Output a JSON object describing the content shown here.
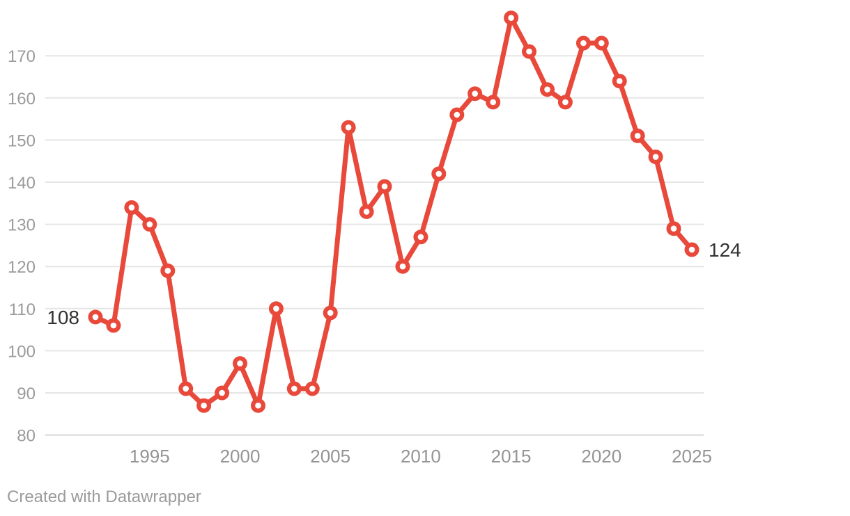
{
  "chart_data": {
    "type": "line",
    "x": [
      1992,
      1993,
      1994,
      1995,
      1996,
      1997,
      1998,
      1999,
      2000,
      2001,
      2002,
      2003,
      2004,
      2005,
      2006,
      2007,
      2008,
      2009,
      2010,
      2011,
      2012,
      2013,
      2014,
      2015,
      2016,
      2017,
      2018,
      2019,
      2020,
      2021,
      2022,
      2023,
      2024,
      2025
    ],
    "values": [
      108,
      106,
      134,
      130,
      119,
      91,
      87,
      90,
      97,
      87,
      110,
      91,
      91,
      109,
      153,
      133,
      139,
      120,
      127,
      142,
      156,
      161,
      159,
      179,
      171,
      162,
      159,
      173,
      173,
      164,
      151,
      146,
      129,
      124
    ],
    "title": "",
    "xlabel": "",
    "ylabel": "",
    "ylim": [
      80,
      180
    ],
    "yticks": [
      80,
      90,
      100,
      110,
      120,
      130,
      140,
      150,
      160,
      170
    ],
    "xticks": [
      1995,
      2000,
      2005,
      2010,
      2015,
      2020,
      2025
    ],
    "first_point_label": "108",
    "last_point_label": "124",
    "grid": "horizontal",
    "legend": "none",
    "marker": "open-circle",
    "series_color": "#e8493b",
    "marker_hole_color": "#ffffff",
    "gridline_color": "#e5e5e5",
    "baseline_color": "#d6d6d6",
    "tick_label_color": "#9b9b9b",
    "value_label_color": "#333333"
  },
  "footer": {
    "credit": "Created with Datawrapper"
  }
}
